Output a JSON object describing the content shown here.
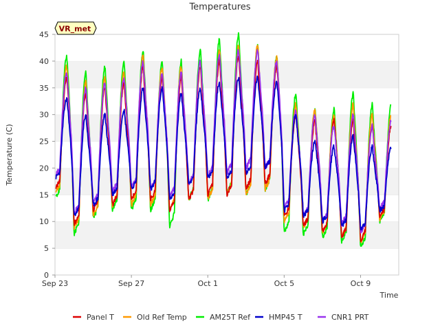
{
  "chart_data": {
    "type": "line",
    "title": "Temperatures",
    "xlabel": "Time",
    "ylabel": "Temperature (C)",
    "badge": "VR_met",
    "ylim": [
      0,
      45
    ],
    "yticks": [
      0,
      5,
      10,
      15,
      20,
      25,
      30,
      35,
      40,
      45
    ],
    "xlim": [
      "2023-09-23",
      "2023-10-11"
    ],
    "xticks": [
      {
        "date": "2023-09-23",
        "label": "Sep 23"
      },
      {
        "date": "2023-09-27",
        "label": "Sep 27"
      },
      {
        "date": "2023-10-01",
        "label": "Oct 1"
      },
      {
        "date": "2023-10-05",
        "label": "Oct 5"
      },
      {
        "date": "2023-10-09",
        "label": "Oct 9"
      }
    ],
    "grid": "horizontal bands",
    "legend_position": "bottom",
    "day_dates": [
      "2023-09-23",
      "2023-09-24",
      "2023-09-25",
      "2023-09-26",
      "2023-09-27",
      "2023-09-28",
      "2023-09-29",
      "2023-09-30",
      "2023-10-01",
      "2023-10-02",
      "2023-10-03",
      "2023-10-04",
      "2023-10-05",
      "2023-10-06",
      "2023-10-07",
      "2023-10-08",
      "2023-10-09",
      "2023-10-10"
    ],
    "series": [
      {
        "name": "Panel T",
        "color": "#dd0000",
        "daily_min": [
          16,
          9.5,
          12,
          13,
          14,
          14,
          12,
          14,
          15,
          15,
          16,
          17,
          11,
          9,
          8,
          7,
          6.5,
          11
        ],
        "daily_max": [
          37,
          34,
          35,
          36,
          39,
          37,
          37,
          39,
          40,
          41,
          40,
          39,
          30,
          29,
          29,
          29,
          28,
          28
        ]
      },
      {
        "name": "Old Ref Temp",
        "color": "#ff9900",
        "daily_min": [
          15,
          8.5,
          11,
          13,
          13,
          13,
          12,
          14,
          14,
          15,
          15,
          16,
          10,
          9,
          8,
          7,
          6,
          10.5
        ],
        "daily_max": [
          39,
          36,
          37,
          38,
          41,
          39,
          39,
          40,
          42,
          43,
          43,
          41,
          32,
          31,
          30,
          32,
          30,
          30
        ]
      },
      {
        "name": "AM25T Ref",
        "color": "#00ee00",
        "daily_min": [
          14,
          7.5,
          10.5,
          12,
          12,
          12,
          9,
          14,
          14,
          15,
          15,
          16,
          8,
          7.5,
          7,
          6,
          5,
          10
        ],
        "daily_max": [
          41,
          38,
          39,
          40,
          42,
          40,
          40,
          42,
          44,
          45,
          43,
          41,
          34,
          31,
          31,
          34,
          32,
          32
        ]
      },
      {
        "name": "HMP45 T",
        "color": "#0000cc",
        "daily_min": [
          18,
          11,
          13,
          15,
          16,
          16,
          14,
          17,
          18,
          18,
          19,
          20,
          12,
          11,
          10,
          9,
          8.5,
          12
        ],
        "daily_max": [
          33,
          30,
          30,
          31,
          35,
          35,
          34,
          35,
          36,
          37,
          37,
          36,
          30,
          25,
          24,
          26,
          24,
          24
        ]
      },
      {
        "name": "CNR1 PRT",
        "color": "#9933ee",
        "daily_min": [
          18.5,
          11.5,
          13.5,
          15.5,
          16.5,
          16,
          14.5,
          17,
          18.5,
          19,
          20,
          20,
          12.5,
          11,
          10,
          9.5,
          8,
          12.5
        ],
        "daily_max": [
          38,
          35,
          36,
          37,
          40,
          38,
          38,
          40,
          41,
          42,
          42,
          40,
          31,
          30,
          28,
          30,
          28,
          29
        ]
      }
    ]
  }
}
